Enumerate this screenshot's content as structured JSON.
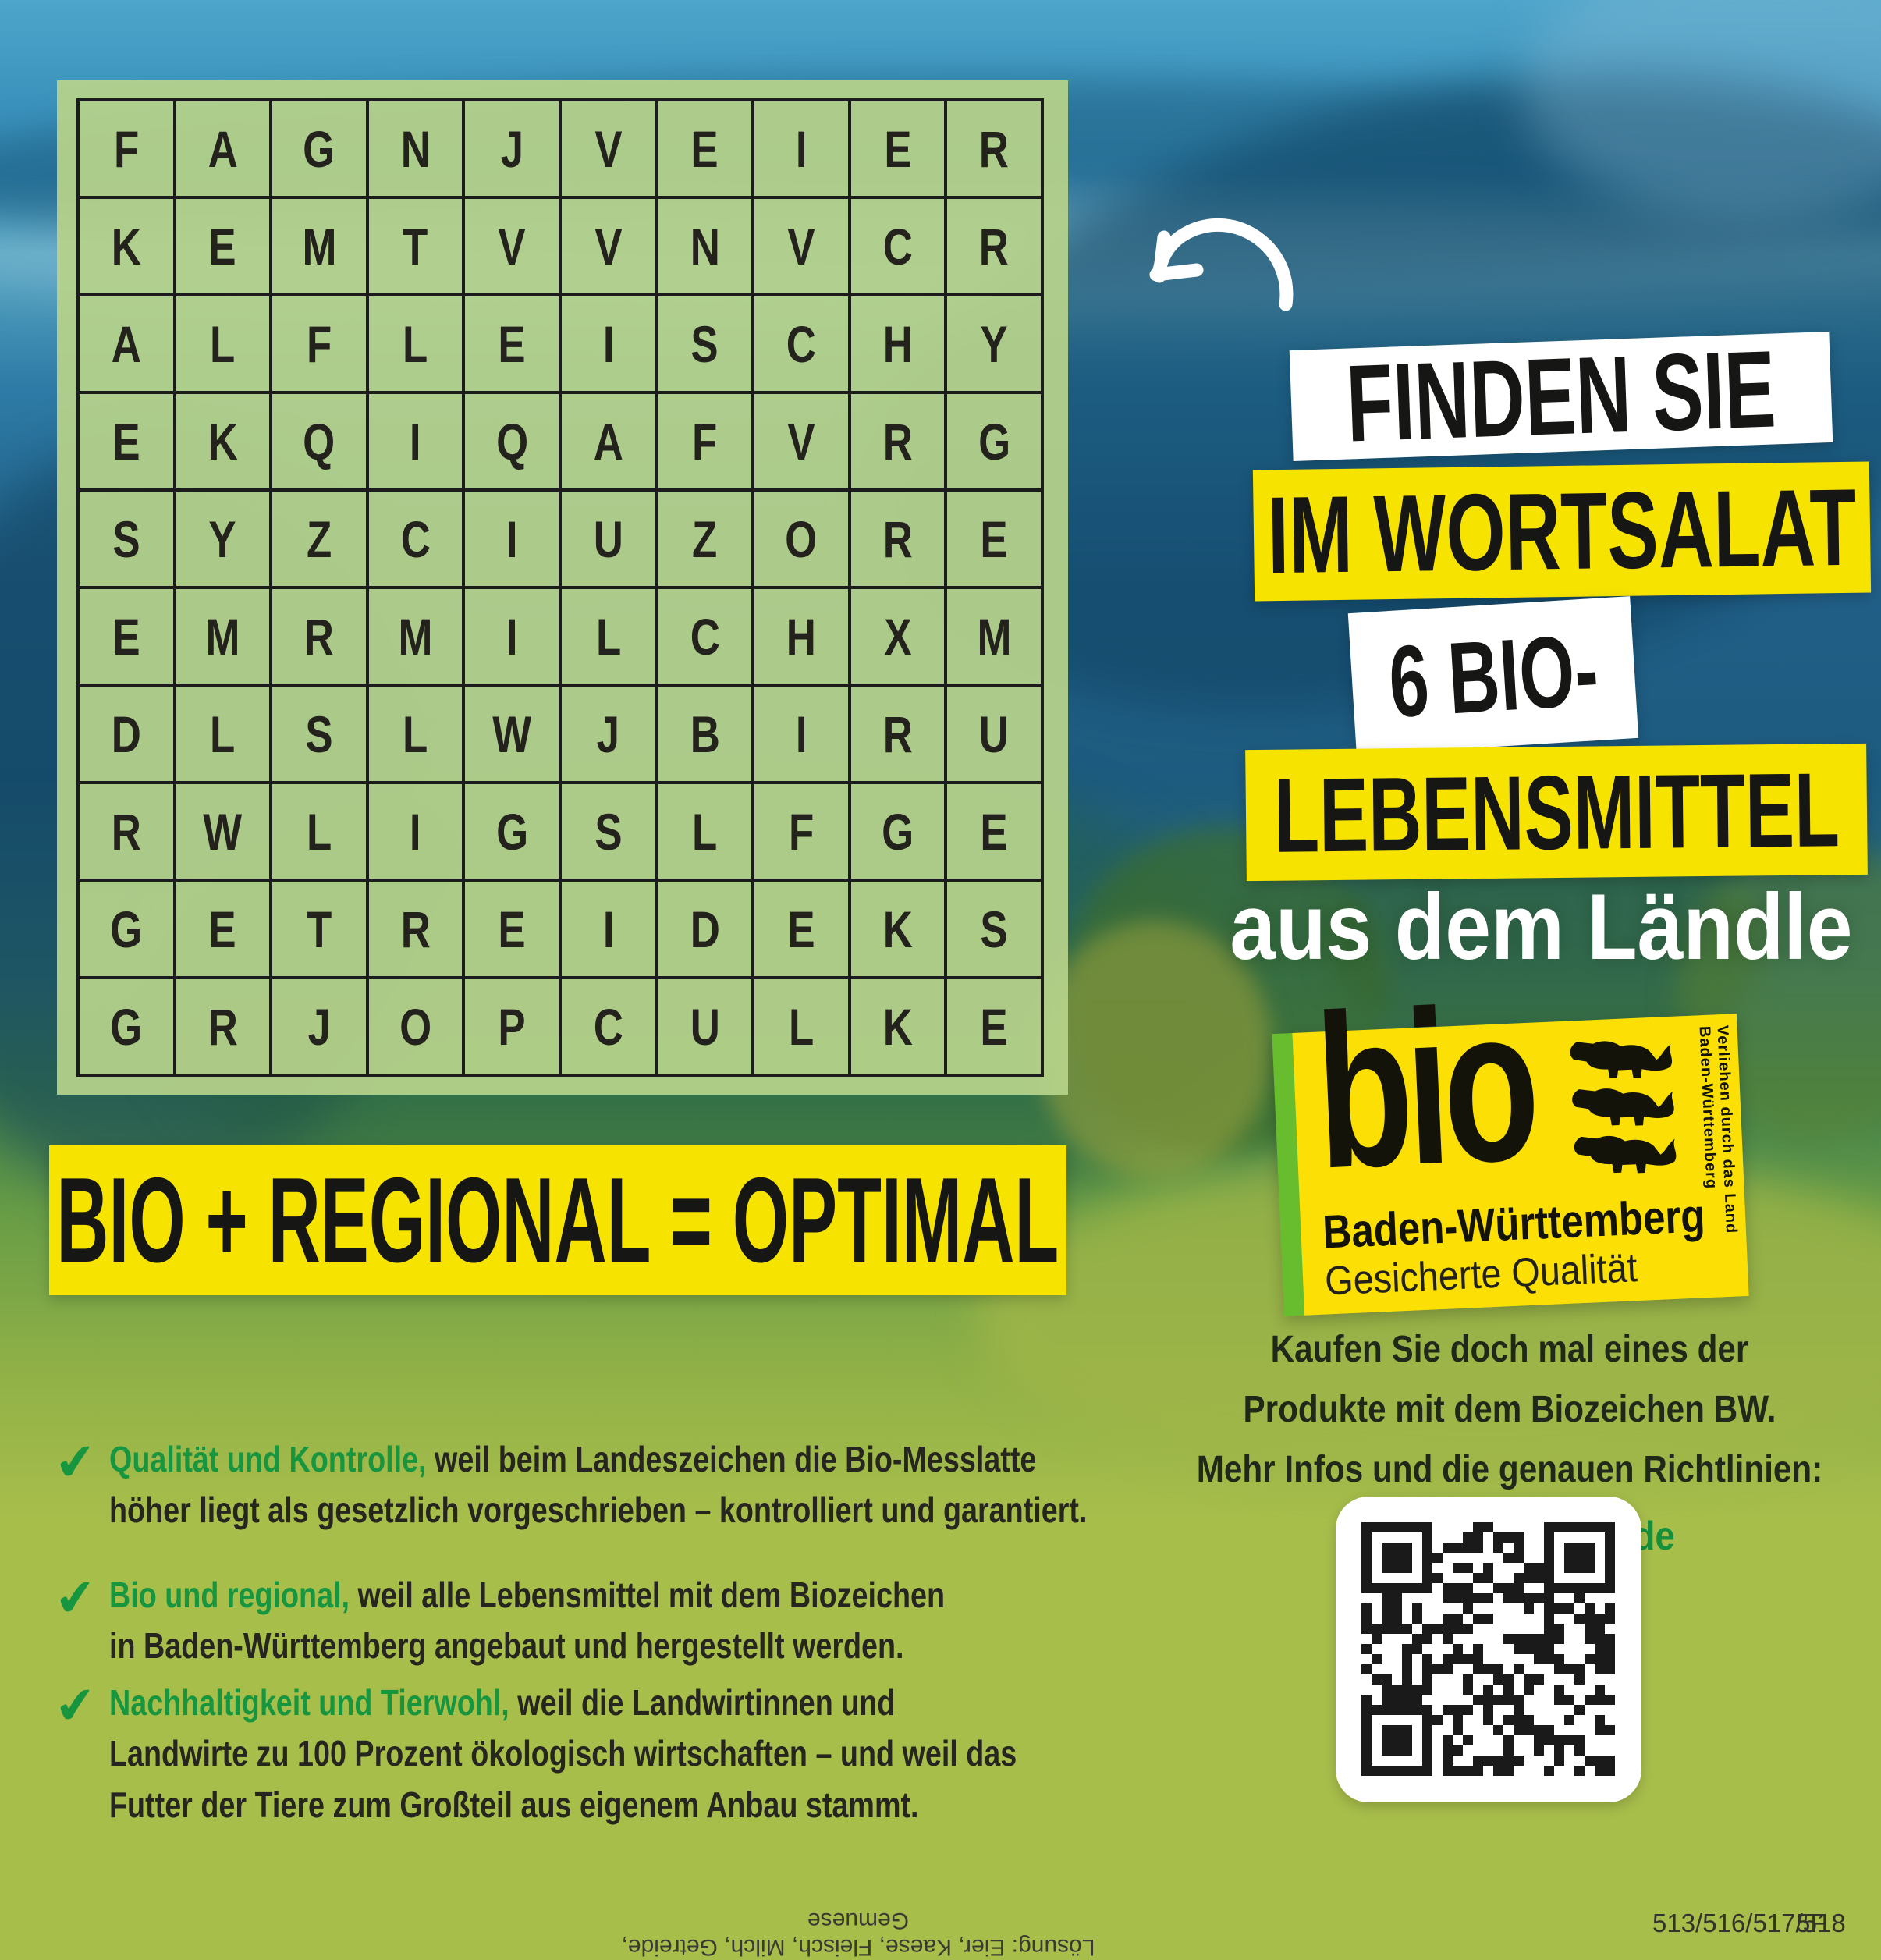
{
  "colors": {
    "yellow": "#f7e300",
    "panel_green": "#b7d38b",
    "accent_green": "#17953f",
    "url_green": "#17903c",
    "logo_yellow": "#fbdf05",
    "logo_strip_green": "#67bd2d",
    "dark_text": "#26251f",
    "bottom_green": "#a8be4b"
  },
  "puzzle": {
    "rows": [
      "FAGNJVEIER",
      "KEMTVVNVCR",
      "ALFLEISCHY",
      "EKQIQAFVRG",
      "SYZCIUZORE",
      "EMRMILCHXM",
      "DLSLWJBIRU",
      "RWLIGSLFGE",
      "GETREIDEKS",
      "GRJOPCULKE"
    ]
  },
  "headline": {
    "finden": "FINDEN SIE",
    "wortsalat": "IM WORTSALAT",
    "bio6": "6 BIO-",
    "lebensmittel": "LEBENSMITTEL",
    "laendle": "aus dem Ländle"
  },
  "banner": {
    "text": "BIO + REGIONAL = OPTIMAL"
  },
  "logo": {
    "word": "bio",
    "region": "Baden-Württemberg",
    "quality": "Gesicherte Qualität",
    "vertical": "Verliehen durch das Land Baden-Württemberg"
  },
  "promo": {
    "line1": "Kaufen Sie doch mal eines der",
    "line2": "Produkte mit dem Biozeichen BW.",
    "line3": "Mehr Infos und die genauen Richtlinien:",
    "url": "www.bio-aus-bw.de"
  },
  "bullets": [
    {
      "check": "✔",
      "lead": "Qualität und Kontrolle,",
      "rest": " weil beim Landeszeichen die Bio-Messlatte",
      "line2": "höher liegt als gesetzlich vorgeschrieben – kontrolliert und garantiert."
    },
    {
      "check": "✔",
      "lead": "Bio und regional,",
      "rest": " weil alle Lebensmittel mit dem Biozeichen",
      "line2": "in Baden-Württemberg angebaut und hergestellt werden."
    },
    {
      "check": "✔",
      "lead": "Nachhaltigkeit und Tierwohl,",
      "rest": " weil die Landwirtinnen und",
      "line2": "Landwirte zu 100 Prozent ökologisch wirtschaften – und weil das",
      "line3": "Futter der Tiere zum Großteil aus eigenem Anbau stammt."
    }
  ],
  "footer": {
    "solution": "Lösung: Eier, Kaese, Fleisch, Milch, Getreide, Gemuese",
    "codes": "513/516/517/518",
    "page": "5F"
  }
}
